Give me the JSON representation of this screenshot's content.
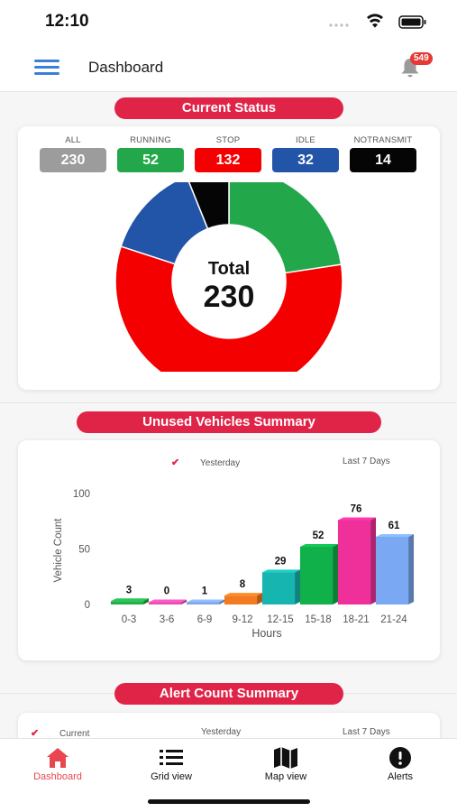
{
  "status_bar": {
    "time": "12:10"
  },
  "header": {
    "title": "Dashboard",
    "notification_count": "549"
  },
  "current_status": {
    "title": "Current Status",
    "stats": [
      {
        "label": "ALL",
        "value": "230",
        "color": "#9c9c9c"
      },
      {
        "label": "RUNNING",
        "value": "52",
        "color": "#22a84a"
      },
      {
        "label": "STOP",
        "value": "132",
        "color": "#f40000"
      },
      {
        "label": "IDLE",
        "value": "32",
        "color": "#2255a8"
      },
      {
        "label": "NOTRANSMIT",
        "value": "14",
        "color": "#050505"
      }
    ],
    "donut_total_label": "Total",
    "donut_total_value": "230"
  },
  "unused_vehicles": {
    "title": "Unused Vehicles Summary",
    "legend": {
      "yesterday": "Yesterday",
      "last7": "Last 7 Days"
    }
  },
  "alert_summary": {
    "title": "Alert Count Summary",
    "legend": {
      "current": "Current",
      "yesterday": "Yesterday",
      "last7": "Last 7 Days"
    }
  },
  "chart_data": [
    {
      "type": "pie",
      "labels": [
        "RUNNING",
        "STOP",
        "IDLE",
        "NOTRANSMIT"
      ],
      "values": [
        52,
        132,
        32,
        14
      ],
      "colors": [
        "#22a84a",
        "#f40000",
        "#2255a8",
        "#050505"
      ],
      "center_text": [
        "Total",
        "230"
      ]
    },
    {
      "type": "bar",
      "categories": [
        "0-3",
        "3-6",
        "6-9",
        "9-12",
        "12-15",
        "15-18",
        "18-21",
        "21-24"
      ],
      "values": [
        3,
        0,
        1,
        8,
        29,
        52,
        76,
        61
      ],
      "colors": [
        "#1fb04a",
        "#e84fb0",
        "#7fa6e8",
        "#f37a1f",
        "#17b5b0",
        "#10b04a",
        "#f0309a",
        "#7aa8f2"
      ],
      "xlabel": "Hours",
      "ylabel": "Vehicle Count",
      "yticks": [
        "0",
        "50",
        "100"
      ],
      "ylim": [
        0,
        100
      ],
      "grid": false
    }
  ],
  "nav": [
    {
      "label": "Dashboard",
      "icon": "home-icon",
      "active": true
    },
    {
      "label": "Grid view",
      "icon": "grid-list-icon",
      "active": false
    },
    {
      "label": "Map view",
      "icon": "map-icon",
      "active": false
    },
    {
      "label": "Alerts",
      "icon": "alert-icon",
      "active": false
    }
  ],
  "colors": {
    "accent": "#e02448",
    "menu": "#3d7fd8"
  }
}
